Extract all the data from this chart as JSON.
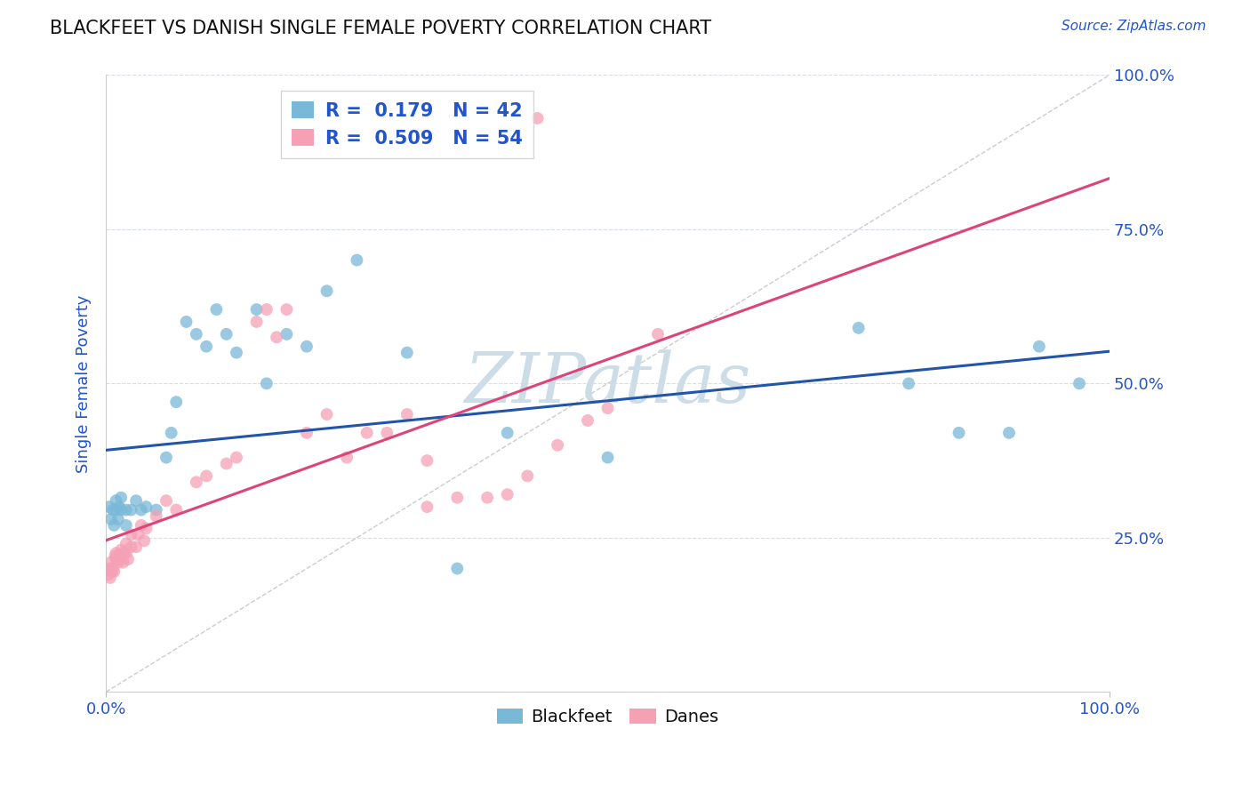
{
  "title": "BLACKFEET VS DANISH SINGLE FEMALE POVERTY CORRELATION CHART",
  "source_text": "Source: ZipAtlas.com",
  "ylabel": "Single Female Poverty",
  "blackfeet_R": 0.179,
  "blackfeet_N": 42,
  "danes_R": 0.509,
  "danes_N": 54,
  "blackfeet_color": "#7ab8d8",
  "danes_color": "#f5a0b5",
  "blackfeet_line_color": "#2255aa",
  "danes_line_color": "#dd4477",
  "diagonal_color": "#cccccc",
  "grid_color": "#d8dde8",
  "watermark_color": "#ccdde8",
  "legend_label_color": "#2255cc",
  "background_color": "#ffffff",
  "figsize": [
    14.06,
    8.92
  ],
  "dpi": 100,
  "blackfeet_points_x": [
    0.003,
    0.005,
    0.007,
    0.008,
    0.01,
    0.01,
    0.012,
    0.013,
    0.015,
    0.015,
    0.02,
    0.02,
    0.025,
    0.03,
    0.035,
    0.04,
    0.05,
    0.06,
    0.065,
    0.07,
    0.08,
    0.09,
    0.1,
    0.11,
    0.12,
    0.13,
    0.15,
    0.16,
    0.18,
    0.2,
    0.22,
    0.25,
    0.3,
    0.35,
    0.4,
    0.5,
    0.75,
    0.8,
    0.85,
    0.9,
    0.93,
    0.97
  ],
  "blackfeet_points_y": [
    0.3,
    0.28,
    0.295,
    0.27,
    0.295,
    0.31,
    0.28,
    0.3,
    0.295,
    0.315,
    0.27,
    0.295,
    0.295,
    0.31,
    0.295,
    0.3,
    0.295,
    0.38,
    0.42,
    0.47,
    0.6,
    0.58,
    0.56,
    0.62,
    0.58,
    0.55,
    0.62,
    0.5,
    0.58,
    0.56,
    0.65,
    0.7,
    0.55,
    0.2,
    0.42,
    0.38,
    0.59,
    0.5,
    0.42,
    0.42,
    0.56,
    0.5
  ],
  "danes_points_x": [
    0.002,
    0.003,
    0.004,
    0.005,
    0.006,
    0.007,
    0.008,
    0.009,
    0.01,
    0.01,
    0.012,
    0.013,
    0.015,
    0.015,
    0.017,
    0.018,
    0.02,
    0.02,
    0.022,
    0.025,
    0.025,
    0.03,
    0.032,
    0.035,
    0.038,
    0.04,
    0.05,
    0.06,
    0.07,
    0.09,
    0.1,
    0.12,
    0.13,
    0.15,
    0.16,
    0.17,
    0.18,
    0.2,
    0.22,
    0.24,
    0.26,
    0.28,
    0.3,
    0.32,
    0.35,
    0.38,
    0.4,
    0.42,
    0.43,
    0.45,
    0.48,
    0.5,
    0.55,
    0.32
  ],
  "danes_points_y": [
    0.19,
    0.2,
    0.185,
    0.21,
    0.195,
    0.2,
    0.195,
    0.22,
    0.215,
    0.225,
    0.21,
    0.22,
    0.215,
    0.23,
    0.21,
    0.225,
    0.225,
    0.24,
    0.215,
    0.235,
    0.255,
    0.235,
    0.255,
    0.27,
    0.245,
    0.265,
    0.285,
    0.31,
    0.295,
    0.34,
    0.35,
    0.37,
    0.38,
    0.6,
    0.62,
    0.575,
    0.62,
    0.42,
    0.45,
    0.38,
    0.42,
    0.42,
    0.45,
    0.375,
    0.315,
    0.315,
    0.32,
    0.35,
    0.93,
    0.4,
    0.44,
    0.46,
    0.58,
    0.3
  ]
}
